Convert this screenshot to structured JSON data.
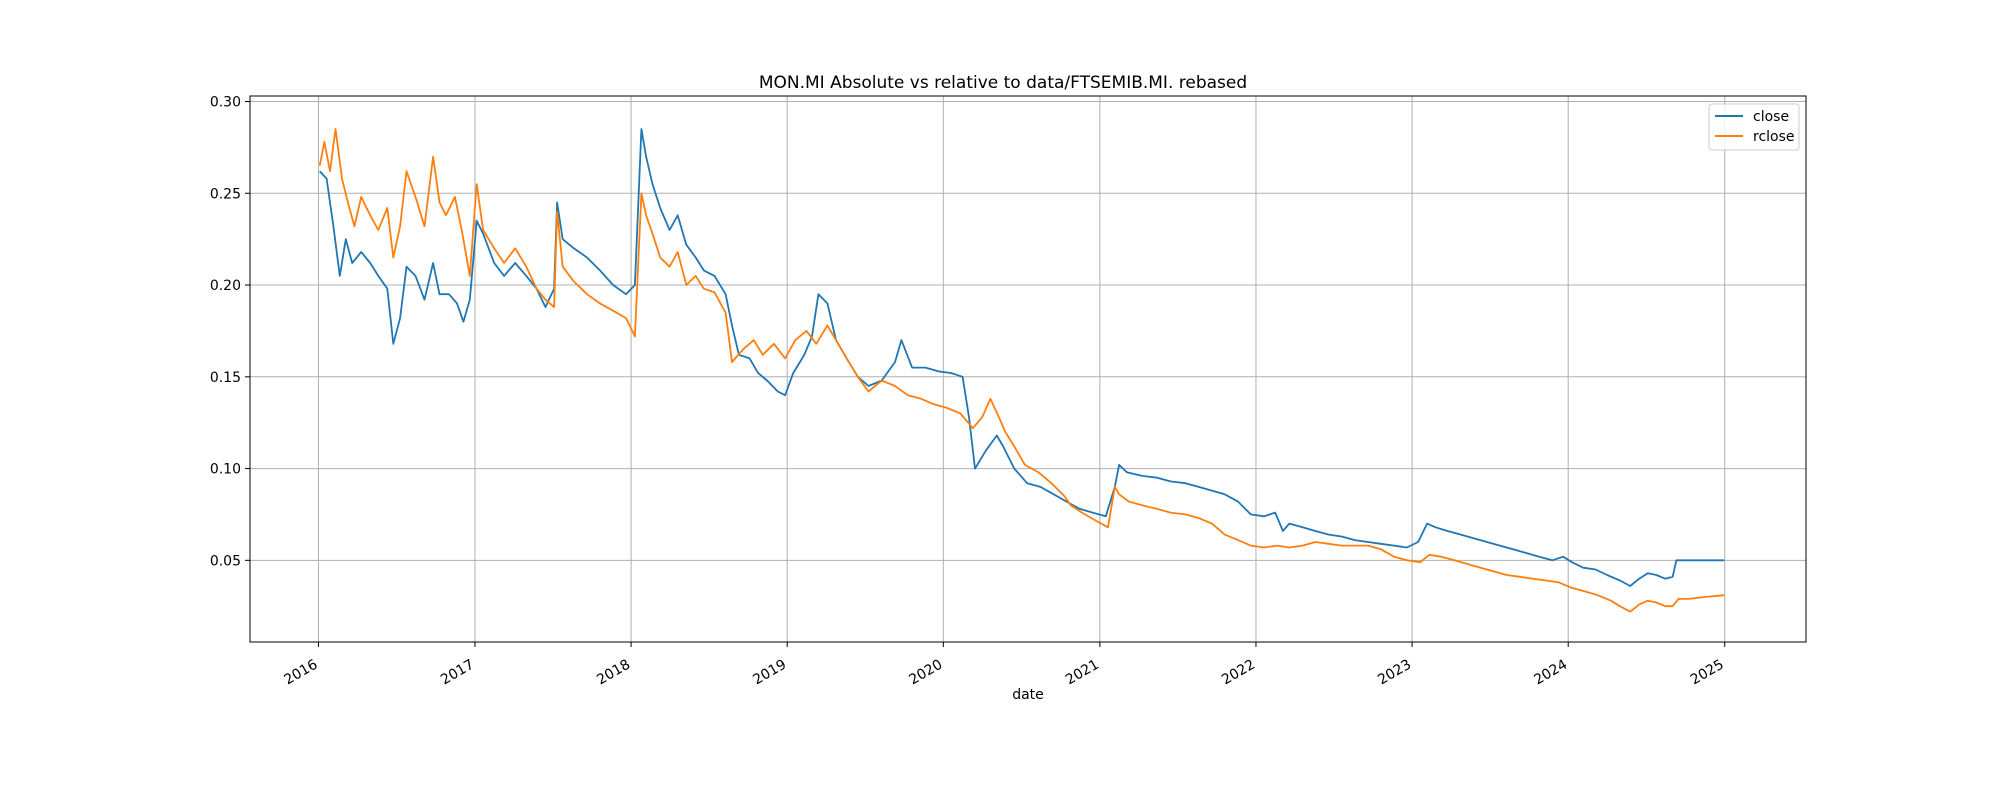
{
  "chart_data": {
    "type": "line",
    "title": "MON.MI Absolute vs relative to data/FTSEMIB.MI. rebased",
    "xlabel": "date",
    "ylabel": "",
    "xlim": [
      "2015-07-25",
      "2025-07-10"
    ],
    "ylim": [
      0.0055,
      0.303
    ],
    "x_ticks": [
      "2016",
      "2017",
      "2018",
      "2019",
      "2020",
      "2021",
      "2022",
      "2023",
      "2024",
      "2025"
    ],
    "y_ticks": [
      "0.05",
      "0.10",
      "0.15",
      "0.20",
      "0.25",
      "0.30"
    ],
    "grid": true,
    "legend_position": "top-right",
    "series": [
      {
        "name": "close",
        "color": "#1f77b4",
        "points": [
          [
            "2016-01-04",
            0.262
          ],
          [
            "2016-01-20",
            0.258
          ],
          [
            "2016-02-05",
            0.232
          ],
          [
            "2016-02-20",
            0.205
          ],
          [
            "2016-03-05",
            0.225
          ],
          [
            "2016-03-20",
            0.212
          ],
          [
            "2016-04-10",
            0.218
          ],
          [
            "2016-05-01",
            0.212
          ],
          [
            "2016-05-20",
            0.205
          ],
          [
            "2016-06-10",
            0.198
          ],
          [
            "2016-06-24",
            0.168
          ],
          [
            "2016-07-10",
            0.182
          ],
          [
            "2016-07-25",
            0.21
          ],
          [
            "2016-08-15",
            0.205
          ],
          [
            "2016-09-05",
            0.192
          ],
          [
            "2016-09-25",
            0.212
          ],
          [
            "2016-10-10",
            0.195
          ],
          [
            "2016-11-01",
            0.195
          ],
          [
            "2016-11-20",
            0.19
          ],
          [
            "2016-12-05",
            0.18
          ],
          [
            "2016-12-20",
            0.192
          ],
          [
            "2017-01-05",
            0.235
          ],
          [
            "2017-01-20",
            0.228
          ],
          [
            "2017-02-15",
            0.212
          ],
          [
            "2017-03-10",
            0.205
          ],
          [
            "2017-04-05",
            0.212
          ],
          [
            "2017-05-01",
            0.205
          ],
          [
            "2017-05-25",
            0.198
          ],
          [
            "2017-06-15",
            0.188
          ],
          [
            "2017-07-05",
            0.198
          ],
          [
            "2017-07-12",
            0.245
          ],
          [
            "2017-07-25",
            0.225
          ],
          [
            "2017-08-20",
            0.22
          ],
          [
            "2017-09-20",
            0.215
          ],
          [
            "2017-10-20",
            0.208
          ],
          [
            "2017-11-20",
            0.2
          ],
          [
            "2017-12-20",
            0.195
          ],
          [
            "2018-01-10",
            0.2
          ],
          [
            "2018-01-25",
            0.285
          ],
          [
            "2018-02-05",
            0.27
          ],
          [
            "2018-02-20",
            0.255
          ],
          [
            "2018-03-10",
            0.242
          ],
          [
            "2018-04-01",
            0.23
          ],
          [
            "2018-04-20",
            0.238
          ],
          [
            "2018-05-10",
            0.222
          ],
          [
            "2018-06-01",
            0.215
          ],
          [
            "2018-06-20",
            0.208
          ],
          [
            "2018-07-15",
            0.205
          ],
          [
            "2018-08-10",
            0.195
          ],
          [
            "2018-08-25",
            0.178
          ],
          [
            "2018-09-10",
            0.162
          ],
          [
            "2018-10-05",
            0.16
          ],
          [
            "2018-10-25",
            0.152
          ],
          [
            "2018-11-15",
            0.148
          ],
          [
            "2018-12-10",
            0.142
          ],
          [
            "2018-12-27",
            0.14
          ],
          [
            "2019-01-15",
            0.152
          ],
          [
            "2019-02-10",
            0.162
          ],
          [
            "2019-02-28",
            0.172
          ],
          [
            "2019-03-15",
            0.195
          ],
          [
            "2019-04-05",
            0.19
          ],
          [
            "2019-04-25",
            0.17
          ],
          [
            "2019-05-20",
            0.16
          ],
          [
            "2019-06-15",
            0.15
          ],
          [
            "2019-07-10",
            0.145
          ],
          [
            "2019-08-10",
            0.148
          ],
          [
            "2019-09-10",
            0.158
          ],
          [
            "2019-09-25",
            0.17
          ],
          [
            "2019-10-20",
            0.155
          ],
          [
            "2019-11-20",
            0.155
          ],
          [
            "2019-12-20",
            0.153
          ],
          [
            "2020-01-20",
            0.152
          ],
          [
            "2020-02-15",
            0.15
          ],
          [
            "2020-03-01",
            0.128
          ],
          [
            "2020-03-15",
            0.1
          ],
          [
            "2020-04-10",
            0.11
          ],
          [
            "2020-05-05",
            0.118
          ],
          [
            "2020-05-20",
            0.112
          ],
          [
            "2020-06-15",
            0.1
          ],
          [
            "2020-07-15",
            0.092
          ],
          [
            "2020-08-15",
            0.09
          ],
          [
            "2020-09-15",
            0.086
          ],
          [
            "2020-10-15",
            0.082
          ],
          [
            "2020-11-15",
            0.078
          ],
          [
            "2020-12-15",
            0.076
          ],
          [
            "2021-01-15",
            0.074
          ],
          [
            "2021-02-05",
            0.09
          ],
          [
            "2021-02-15",
            0.102
          ],
          [
            "2021-03-05",
            0.098
          ],
          [
            "2021-04-10",
            0.096
          ],
          [
            "2021-05-15",
            0.095
          ],
          [
            "2021-06-15",
            0.093
          ],
          [
            "2021-07-20",
            0.092
          ],
          [
            "2021-08-20",
            0.09
          ],
          [
            "2021-09-20",
            0.088
          ],
          [
            "2021-10-20",
            0.086
          ],
          [
            "2021-11-20",
            0.082
          ],
          [
            "2021-12-20",
            0.075
          ],
          [
            "2022-01-20",
            0.074
          ],
          [
            "2022-02-15",
            0.076
          ],
          [
            "2022-03-05",
            0.066
          ],
          [
            "2022-03-20",
            0.07
          ],
          [
            "2022-04-20",
            0.068
          ],
          [
            "2022-05-20",
            0.066
          ],
          [
            "2022-06-20",
            0.064
          ],
          [
            "2022-07-20",
            0.063
          ],
          [
            "2022-08-20",
            0.061
          ],
          [
            "2022-09-20",
            0.06
          ],
          [
            "2022-10-20",
            0.059
          ],
          [
            "2022-11-20",
            0.058
          ],
          [
            "2022-12-20",
            0.057
          ],
          [
            "2023-01-15",
            0.06
          ],
          [
            "2023-02-05",
            0.07
          ],
          [
            "2023-02-25",
            0.068
          ],
          [
            "2023-03-25",
            0.066
          ],
          [
            "2023-04-25",
            0.064
          ],
          [
            "2023-05-25",
            0.062
          ],
          [
            "2023-06-25",
            0.06
          ],
          [
            "2023-07-25",
            0.058
          ],
          [
            "2023-08-25",
            0.056
          ],
          [
            "2023-09-25",
            0.054
          ],
          [
            "2023-10-25",
            0.052
          ],
          [
            "2023-11-25",
            0.05
          ],
          [
            "2023-12-20",
            0.052
          ],
          [
            "2024-01-10",
            0.049
          ],
          [
            "2024-02-05",
            0.046
          ],
          [
            "2024-03-05",
            0.045
          ],
          [
            "2024-04-01",
            0.042
          ],
          [
            "2024-05-01",
            0.039
          ],
          [
            "2024-05-25",
            0.036
          ],
          [
            "2024-06-15",
            0.04
          ],
          [
            "2024-07-05",
            0.043
          ],
          [
            "2024-07-25",
            0.042
          ],
          [
            "2024-08-15",
            0.04
          ],
          [
            "2024-09-01",
            0.041
          ],
          [
            "2024-09-10",
            0.05
          ],
          [
            "2024-10-10",
            0.05
          ],
          [
            "2024-11-15",
            0.05
          ],
          [
            "2024-12-31",
            0.05
          ]
        ]
      },
      {
        "name": "rclose",
        "color": "#ff7f0e",
        "points": [
          [
            "2016-01-04",
            0.265
          ],
          [
            "2016-01-15",
            0.278
          ],
          [
            "2016-01-28",
            0.262
          ],
          [
            "2016-02-10",
            0.285
          ],
          [
            "2016-02-25",
            0.258
          ],
          [
            "2016-03-10",
            0.245
          ],
          [
            "2016-03-25",
            0.232
          ],
          [
            "2016-04-10",
            0.248
          ],
          [
            "2016-05-01",
            0.238
          ],
          [
            "2016-05-20",
            0.23
          ],
          [
            "2016-06-10",
            0.242
          ],
          [
            "2016-06-24",
            0.215
          ],
          [
            "2016-07-10",
            0.232
          ],
          [
            "2016-07-25",
            0.262
          ],
          [
            "2016-08-15",
            0.248
          ],
          [
            "2016-09-05",
            0.232
          ],
          [
            "2016-09-25",
            0.27
          ],
          [
            "2016-10-10",
            0.245
          ],
          [
            "2016-10-25",
            0.238
          ],
          [
            "2016-11-15",
            0.248
          ],
          [
            "2016-12-01",
            0.23
          ],
          [
            "2016-12-20",
            0.205
          ],
          [
            "2017-01-05",
            0.255
          ],
          [
            "2017-01-20",
            0.23
          ],
          [
            "2017-02-15",
            0.22
          ],
          [
            "2017-03-10",
            0.212
          ],
          [
            "2017-04-05",
            0.22
          ],
          [
            "2017-05-01",
            0.21
          ],
          [
            "2017-05-25",
            0.198
          ],
          [
            "2017-06-15",
            0.192
          ],
          [
            "2017-07-05",
            0.188
          ],
          [
            "2017-07-12",
            0.24
          ],
          [
            "2017-07-25",
            0.21
          ],
          [
            "2017-08-20",
            0.202
          ],
          [
            "2017-09-20",
            0.195
          ],
          [
            "2017-10-20",
            0.19
          ],
          [
            "2017-11-20",
            0.186
          ],
          [
            "2017-12-20",
            0.182
          ],
          [
            "2018-01-10",
            0.172
          ],
          [
            "2018-01-25",
            0.25
          ],
          [
            "2018-02-05",
            0.238
          ],
          [
            "2018-02-20",
            0.228
          ],
          [
            "2018-03-10",
            0.215
          ],
          [
            "2018-04-01",
            0.21
          ],
          [
            "2018-04-20",
            0.218
          ],
          [
            "2018-05-10",
            0.2
          ],
          [
            "2018-06-01",
            0.205
          ],
          [
            "2018-06-20",
            0.198
          ],
          [
            "2018-07-15",
            0.196
          ],
          [
            "2018-08-10",
            0.185
          ],
          [
            "2018-08-25",
            0.158
          ],
          [
            "2018-09-20",
            0.165
          ],
          [
            "2018-10-15",
            0.17
          ],
          [
            "2018-11-05",
            0.162
          ],
          [
            "2018-12-01",
            0.168
          ],
          [
            "2018-12-27",
            0.16
          ],
          [
            "2019-01-20",
            0.17
          ],
          [
            "2019-02-15",
            0.175
          ],
          [
            "2019-03-10",
            0.168
          ],
          [
            "2019-04-05",
            0.178
          ],
          [
            "2019-04-25",
            0.17
          ],
          [
            "2019-05-20",
            0.16
          ],
          [
            "2019-06-15",
            0.15
          ],
          [
            "2019-07-10",
            0.142
          ],
          [
            "2019-08-10",
            0.148
          ],
          [
            "2019-09-10",
            0.145
          ],
          [
            "2019-10-10",
            0.14
          ],
          [
            "2019-11-10",
            0.138
          ],
          [
            "2019-12-10",
            0.135
          ],
          [
            "2020-01-10",
            0.133
          ],
          [
            "2020-02-10",
            0.13
          ],
          [
            "2020-03-10",
            0.122
          ],
          [
            "2020-04-01",
            0.128
          ],
          [
            "2020-04-20",
            0.138
          ],
          [
            "2020-05-10",
            0.128
          ],
          [
            "2020-05-25",
            0.12
          ],
          [
            "2020-06-15",
            0.112
          ],
          [
            "2020-07-10",
            0.102
          ],
          [
            "2020-08-10",
            0.098
          ],
          [
            "2020-09-10",
            0.092
          ],
          [
            "2020-10-10",
            0.085
          ],
          [
            "2020-10-25",
            0.08
          ],
          [
            "2020-11-20",
            0.076
          ],
          [
            "2020-12-20",
            0.072
          ],
          [
            "2021-01-20",
            0.068
          ],
          [
            "2021-02-05",
            0.09
          ],
          [
            "2021-02-15",
            0.086
          ],
          [
            "2021-03-10",
            0.082
          ],
          [
            "2021-04-10",
            0.08
          ],
          [
            "2021-05-15",
            0.078
          ],
          [
            "2021-06-15",
            0.076
          ],
          [
            "2021-07-20",
            0.075
          ],
          [
            "2021-08-20",
            0.073
          ],
          [
            "2021-09-20",
            0.07
          ],
          [
            "2021-10-20",
            0.064
          ],
          [
            "2021-11-20",
            0.061
          ],
          [
            "2021-12-20",
            0.058
          ],
          [
            "2022-01-20",
            0.057
          ],
          [
            "2022-02-20",
            0.058
          ],
          [
            "2022-03-20",
            0.057
          ],
          [
            "2022-04-20",
            0.058
          ],
          [
            "2022-05-20",
            0.06
          ],
          [
            "2022-06-20",
            0.059
          ],
          [
            "2022-07-20",
            0.058
          ],
          [
            "2022-08-20",
            0.058
          ],
          [
            "2022-09-20",
            0.058
          ],
          [
            "2022-10-20",
            0.056
          ],
          [
            "2022-11-20",
            0.052
          ],
          [
            "2022-12-20",
            0.05
          ],
          [
            "2023-01-20",
            0.049
          ],
          [
            "2023-02-10",
            0.053
          ],
          [
            "2023-03-10",
            0.052
          ],
          [
            "2023-04-10",
            0.05
          ],
          [
            "2023-05-10",
            0.048
          ],
          [
            "2023-06-10",
            0.046
          ],
          [
            "2023-07-10",
            0.044
          ],
          [
            "2023-08-10",
            0.042
          ],
          [
            "2023-09-10",
            0.041
          ],
          [
            "2023-10-10",
            0.04
          ],
          [
            "2023-11-10",
            0.039
          ],
          [
            "2023-12-10",
            0.038
          ],
          [
            "2024-01-10",
            0.035
          ],
          [
            "2024-02-10",
            0.033
          ],
          [
            "2024-03-10",
            0.031
          ],
          [
            "2024-04-10",
            0.028
          ],
          [
            "2024-05-01",
            0.025
          ],
          [
            "2024-05-25",
            0.022
          ],
          [
            "2024-06-15",
            0.026
          ],
          [
            "2024-07-05",
            0.028
          ],
          [
            "2024-07-25",
            0.027
          ],
          [
            "2024-08-15",
            0.025
          ],
          [
            "2024-09-01",
            0.025
          ],
          [
            "2024-09-15",
            0.029
          ],
          [
            "2024-10-10",
            0.029
          ],
          [
            "2024-11-15",
            0.03
          ],
          [
            "2024-12-31",
            0.031
          ]
        ]
      }
    ]
  }
}
